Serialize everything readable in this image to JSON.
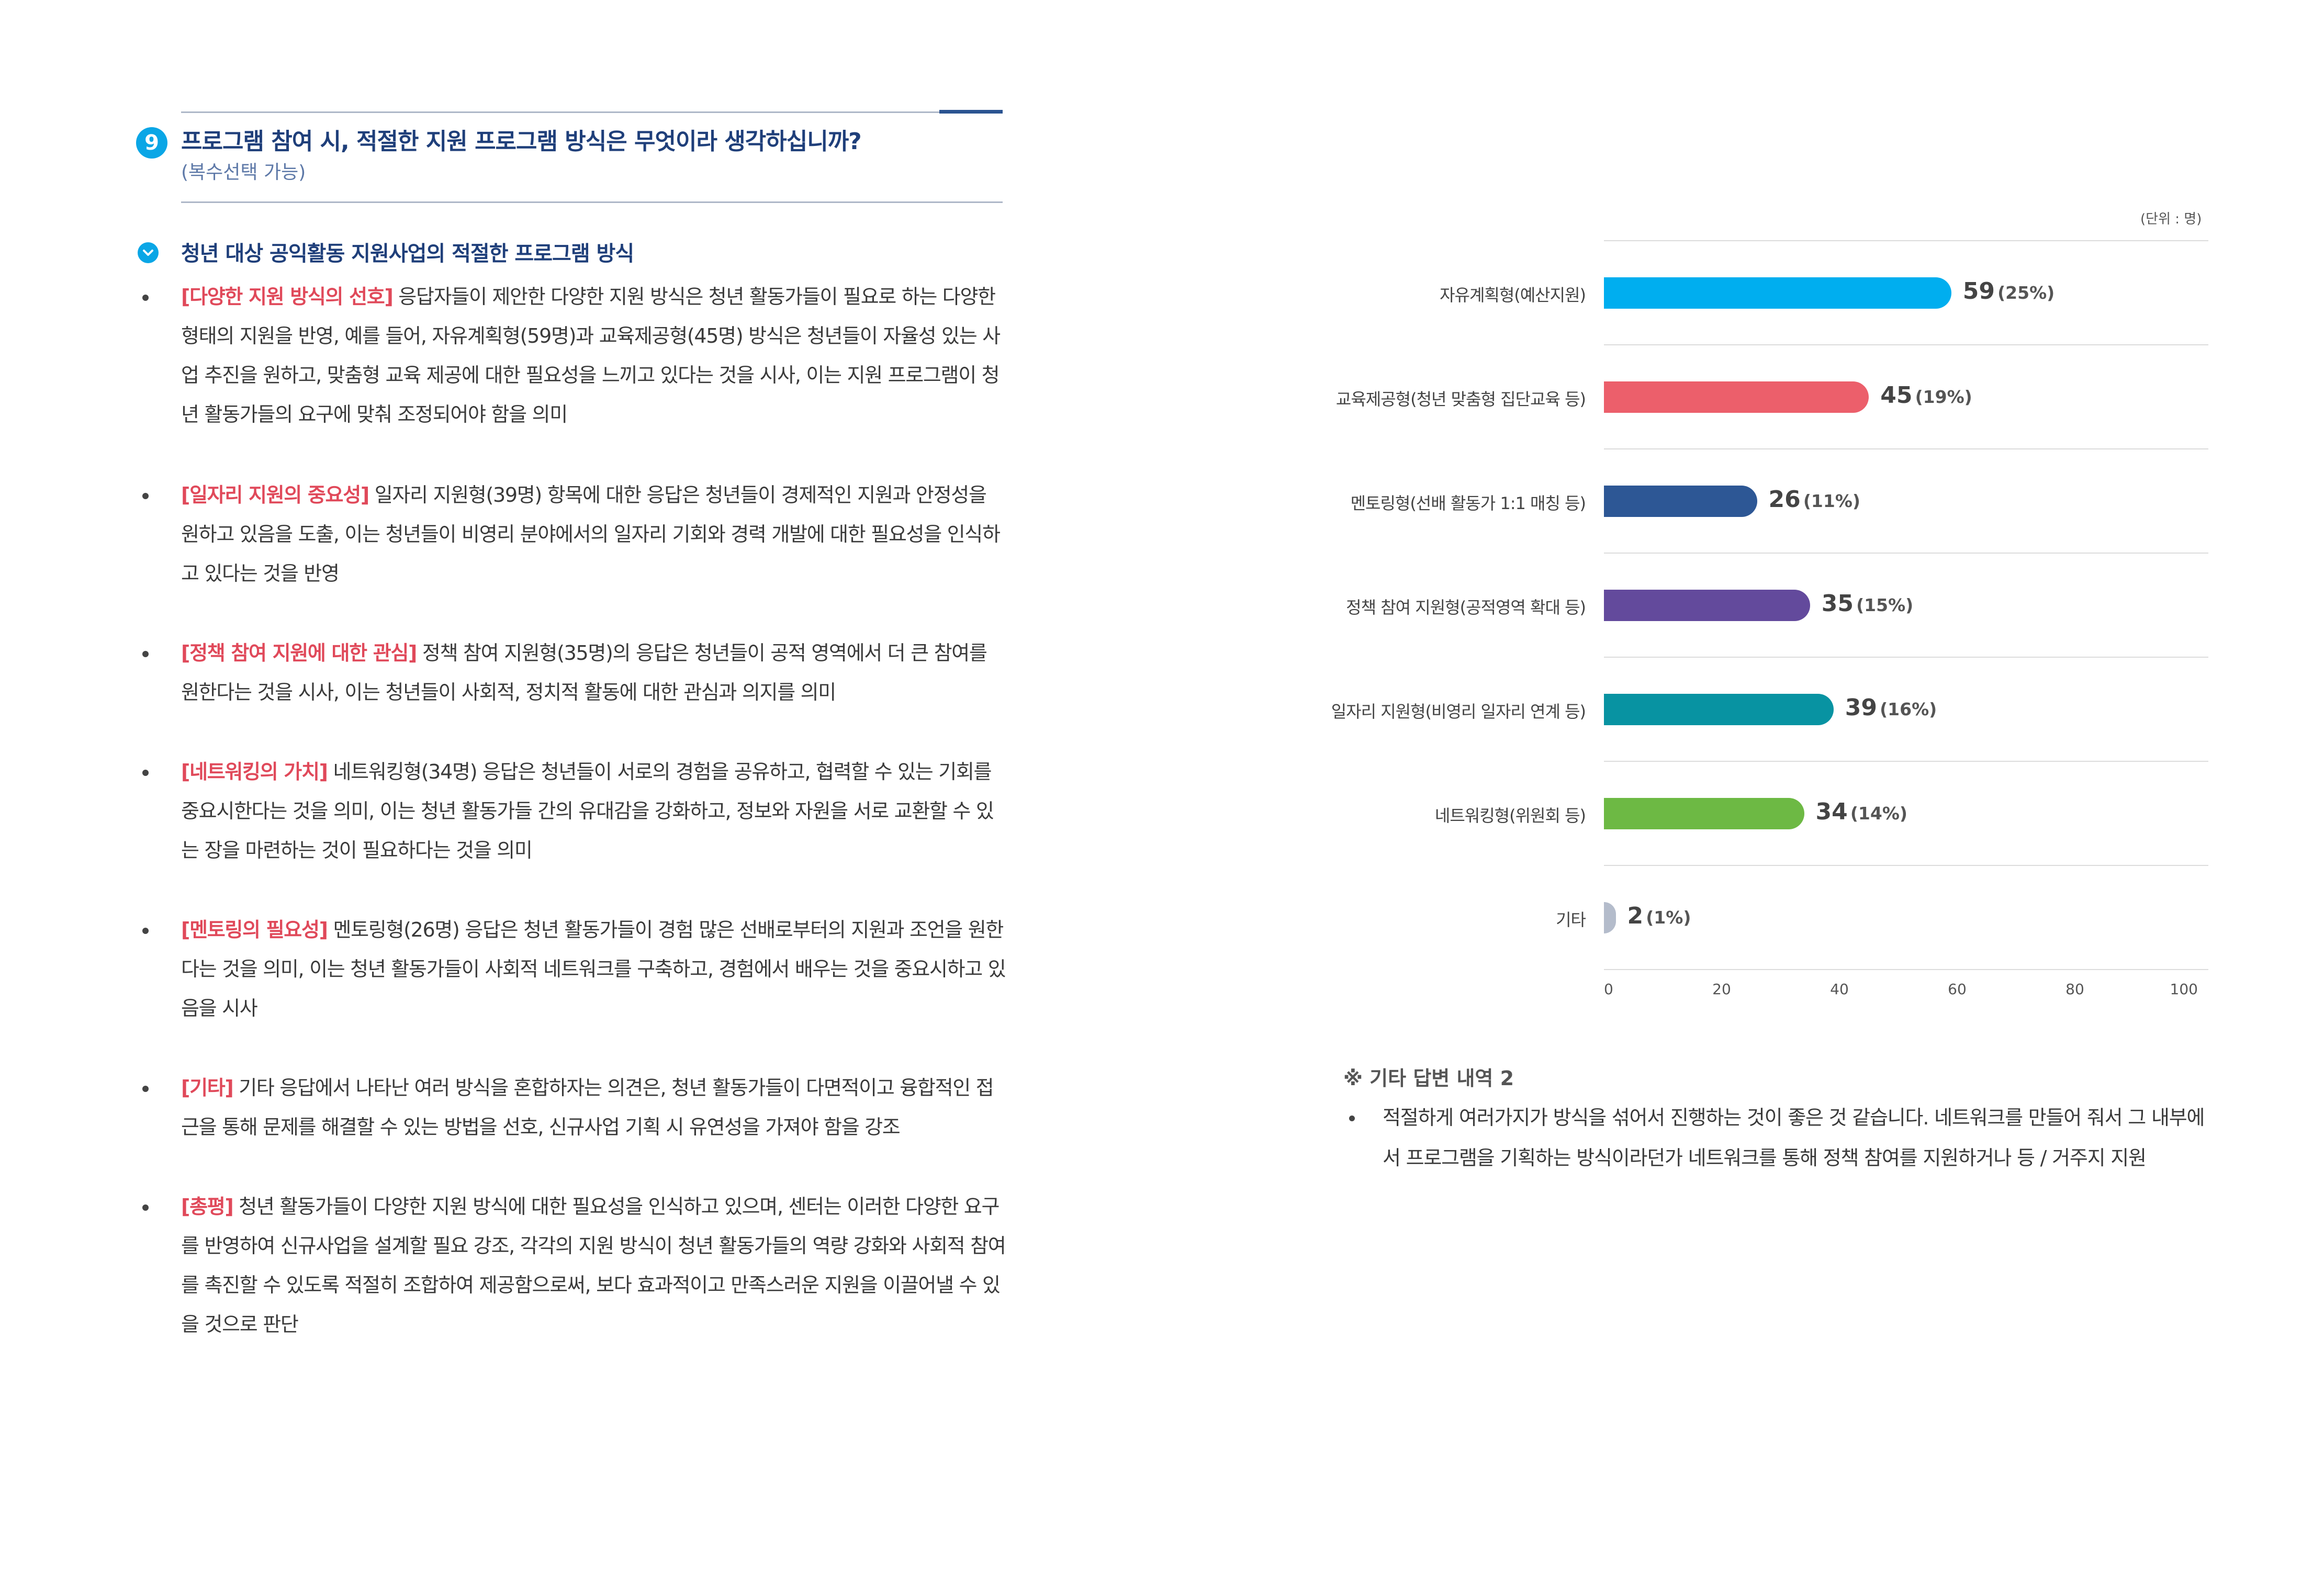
{
  "question": {
    "number": "9",
    "title": "프로그램 참여 시, 적절한 지원 프로그램 방식은 무엇이라 생각하십니까?",
    "subtitle": "(복수선택 가능)"
  },
  "section": {
    "title": "청년 대상 공익활동 지원사업의 적절한 프로그램 방식"
  },
  "findings": [
    {
      "label": "[다양한 지원 방식의 선호]",
      "text": " 응답자들이 제안한 다양한 지원 방식은 청년 활동가들이 필요로 하는 다양한 형태의 지원을 반영, 예를 들어, 자유계획형(59명)과 교육제공형(45명) 방식은 청년들이 자율성 있는 사업 추진을 원하고, 맞춤형 교육 제공에 대한 필요성을 느끼고 있다는 것을 시사, 이는 지원 프로그램이 청년 활동가들의 요구에 맞춰 조정되어야 함을 의미"
    },
    {
      "label": "[일자리 지원의 중요성]",
      "text": " 일자리 지원형(39명) 항목에 대한 응답은 청년들이 경제적인 지원과 안정성을 원하고 있음을 도출, 이는 청년들이 비영리 분야에서의 일자리 기회와 경력 개발에 대한 필요성을 인식하고 있다는 것을 반영"
    },
    {
      "label": "[정책 참여 지원에 대한 관심]",
      "text": " 정책 참여 지원형(35명)의 응답은 청년들이 공적 영역에서 더 큰 참여를 원한다는 것을 시사, 이는 청년들이 사회적, 정치적 활동에 대한 관심과 의지를 의미"
    },
    {
      "label": "[네트워킹의 가치]",
      "text": " 네트워킹형(34명) 응답은 청년들이 서로의 경험을 공유하고, 협력할 수 있는 기회를 중요시한다는 것을 의미, 이는 청년 활동가들 간의 유대감을 강화하고, 정보와 자원을 서로 교환할 수 있는 장을 마련하는 것이 필요하다는 것을 의미"
    },
    {
      "label": "[멘토링의 필요성]",
      "text": " 멘토링형(26명) 응답은 청년 활동가들이 경험 많은 선배로부터의 지원과 조언을 원한다는 것을 의미, 이는 청년 활동가들이 사회적 네트워크를 구축하고, 경험에서 배우는 것을 중요시하고 있음을 시사"
    },
    {
      "label": "[기타]",
      "text": " 기타 응답에서 나타난 여러 방식을 혼합하자는 의견은, 청년 활동가들이 다면적이고 융합적인 접근을 통해 문제를 해결할 수 있는 방법을 선호, 신규사업 기획 시 유연성을 가져야 함을 강조"
    },
    {
      "label": "[총평]",
      "text": " 청년 활동가들이 다양한 지원 방식에 대한 필요성을 인식하고 있으며, 센터는 이러한 다양한 요구를 반영하여 신규사업을 설계할 필요 강조, 각각의 지원 방식이 청년 활동가들의 역량 강화와 사회적 참여를 촉진할 수 있도록 적절히 조합하여 제공함으로써, 보다 효과적이고 만족스러운 지원을 이끌어낼 수 있을 것으로 판단"
    }
  ],
  "chart_data": {
    "type": "bar",
    "orientation": "horizontal",
    "unit_label": "(단위 : 명)",
    "categories": [
      "자유계획형(예산지원)",
      "교육제공형(청년 맞춤형 집단교육 등)",
      "멘토링형(선배 활동가 1:1 매칭 등)",
      "정책 참여 지원형(공적영역 확대 등)",
      "일자리 지원형(비영리 일자리 연계 등)",
      "네트워킹형(위원회 등)",
      "기타"
    ],
    "values": [
      59,
      45,
      26,
      35,
      39,
      34,
      2
    ],
    "percent_labels": [
      "(25%)",
      "(19%)",
      "(11%)",
      "(15%)",
      "(16%)",
      "(14%)",
      "(1%)"
    ],
    "colors": [
      "#00aeef",
      "#ec5f6b",
      "#2d5795",
      "#634a9c",
      "#0893a2",
      "#6db944",
      "#b4bccb"
    ],
    "xlim": [
      0,
      100
    ],
    "xticks": [
      "0",
      "20",
      "40",
      "60",
      "80",
      "100"
    ],
    "grid": true
  },
  "note": {
    "title": "※ 기타 답변 내역 2",
    "text": "적절하게 여러가지가 방식을 섞어서 진행하는 것이 좋은 것 같습니다. 네트워크를 만들어 줘서 그 내부에서 프로그램을 기획하는 방식이라던가 네트워크를 통해 정책 참여를 지원하거나 등 / 거주지 지원"
  }
}
